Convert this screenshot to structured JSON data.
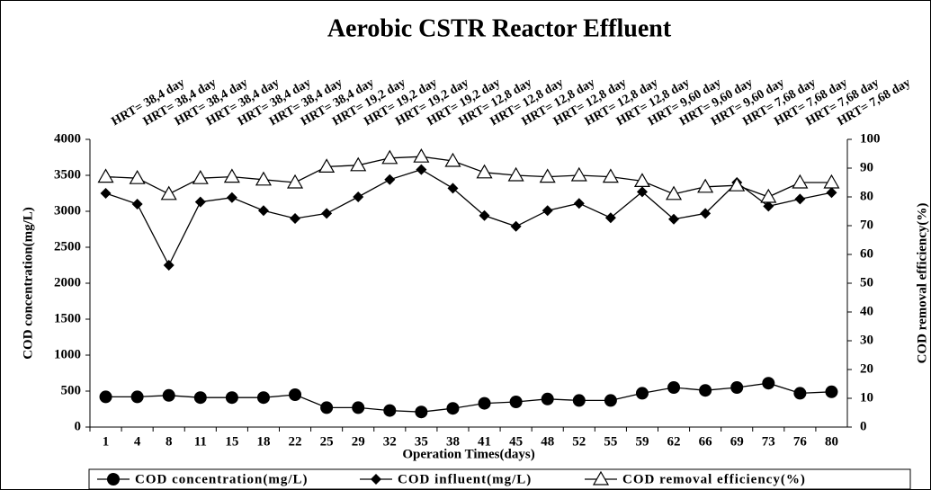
{
  "chart_data": {
    "type": "line",
    "title": "Aerobic CSTR Reactor Effluent",
    "x_label": "Operation Times(days)",
    "y_label": "COD concentration(mg/L)",
    "y2_label": "COD removal efficiency(%)",
    "categories": [
      "1",
      "4",
      "8",
      "11",
      "15",
      "18",
      "22",
      "25",
      "29",
      "32",
      "35",
      "38",
      "41",
      "45",
      "48",
      "52",
      "55",
      "59",
      "62",
      "66",
      "69",
      "73",
      "76",
      "80"
    ],
    "hrt_labels": [
      "HRT= 38,4 day",
      "HRT= 38,4 day",
      "HRT= 38,4 day",
      "HRT= 38,4 day",
      "HRT= 38,4 day",
      "HRT= 38,4 day",
      "HRT= 38,4 day",
      "HRT= 19,2 day",
      "HRT= 19,2 day",
      "HRT= 19,2 day",
      "HRT= 19,2 day",
      "HRT= 12,8 day",
      "HRT= 12,8 day",
      "HRT= 12,8 day",
      "HRT= 12,8 day",
      "HRT= 12,8 day",
      "HRT= 12,8 day",
      "HRT= 9,60 day",
      "HRT= 9,60 day",
      "HRT= 9,60 day",
      "HRT= 7,68 day",
      "HRT= 7,68 day",
      "HRT= 7,68 day",
      "HRT= 7,68 day"
    ],
    "series": [
      {
        "name": "COD concentration(mg/L)",
        "color": "#000000",
        "marker": "circle",
        "values": [
          420,
          420,
          440,
          410,
          410,
          410,
          450,
          270,
          270,
          230,
          210,
          260,
          330,
          350,
          390,
          370,
          370,
          470,
          550,
          510,
          550,
          610,
          470,
          490
        ]
      },
      {
        "name": "COD influent(mg/L)",
        "color": "#000000",
        "marker": "diamond",
        "values": [
          3250,
          3100,
          2250,
          3130,
          3190,
          3010,
          2900,
          2970,
          3200,
          3440,
          3580,
          3320,
          2940,
          2790,
          3010,
          3110,
          2910,
          3270,
          2890,
          2970,
          3400,
          3070,
          3170,
          3260
        ]
      },
      {
        "name": "COD removal efficiency(%)",
        "color": "#000000",
        "marker": "triangle",
        "axis": "y2",
        "values": [
          87,
          86.5,
          81,
          86.5,
          87,
          86,
          85,
          90.5,
          91,
          93.5,
          94,
          92.5,
          88.5,
          87.5,
          87,
          87.5,
          87,
          85.5,
          81,
          83.5,
          84,
          80,
          85,
          85
        ]
      }
    ],
    "ylim": [
      0,
      4000
    ],
    "yticks": [
      0,
      500,
      1000,
      1500,
      2000,
      2500,
      3000,
      3500,
      4000
    ],
    "y2lim": [
      0,
      100
    ],
    "y2ticks": [
      0,
      10,
      20,
      30,
      40,
      50,
      60,
      70,
      80,
      90,
      100
    ]
  }
}
